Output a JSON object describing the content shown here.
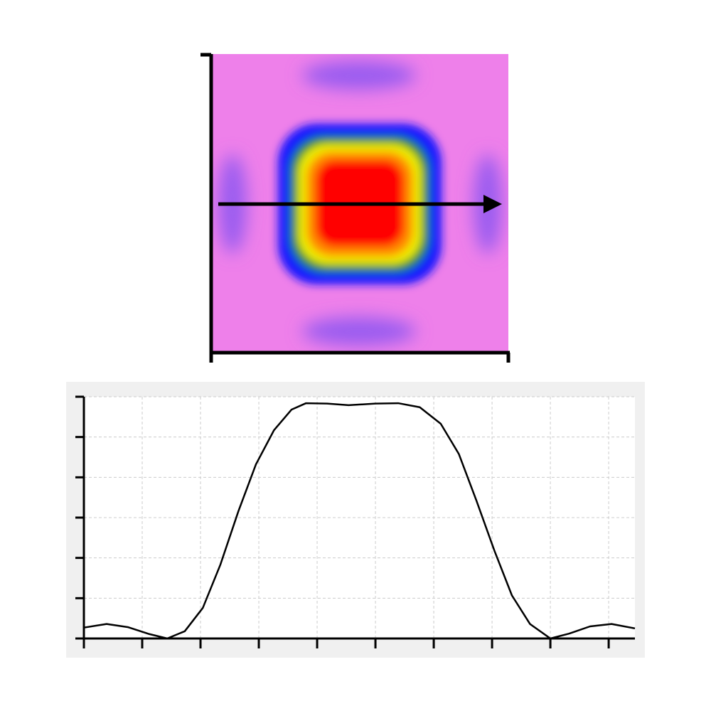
{
  "chart_data": {
    "type": "line",
    "x": [
      0,
      0.39,
      0.76,
      1.12,
      1.43,
      1.73,
      2.04,
      2.34,
      2.65,
      2.95,
      3.26,
      3.56,
      3.81,
      4.17,
      4.54,
      5.0,
      5.39,
      5.76,
      6.12,
      6.43,
      6.73,
      7.04,
      7.34,
      7.65,
      8.0,
      8.32,
      8.68,
      9.05,
      9.45
    ],
    "series": [
      {
        "color": "#000000",
        "values": [
          0.27,
          0.36,
          0.28,
          0.11,
          0,
          0.18,
          0.76,
          1.83,
          3.16,
          4.32,
          5.17,
          5.68,
          5.84,
          5.83,
          5.79,
          5.83,
          5.84,
          5.74,
          5.33,
          4.58,
          3.43,
          2.18,
          1.07,
          0.36,
          0,
          0.12,
          0.3,
          0.36,
          0.25
        ]
      }
    ],
    "xlim": [
      0,
      9.45
    ],
    "xticks": [
      0,
      1,
      2,
      3,
      4,
      5,
      6,
      7,
      8,
      9
    ],
    "ylim": [
      0,
      6
    ],
    "yticks": [
      0,
      1,
      2,
      3,
      4,
      5,
      6
    ],
    "grid": true
  }
}
